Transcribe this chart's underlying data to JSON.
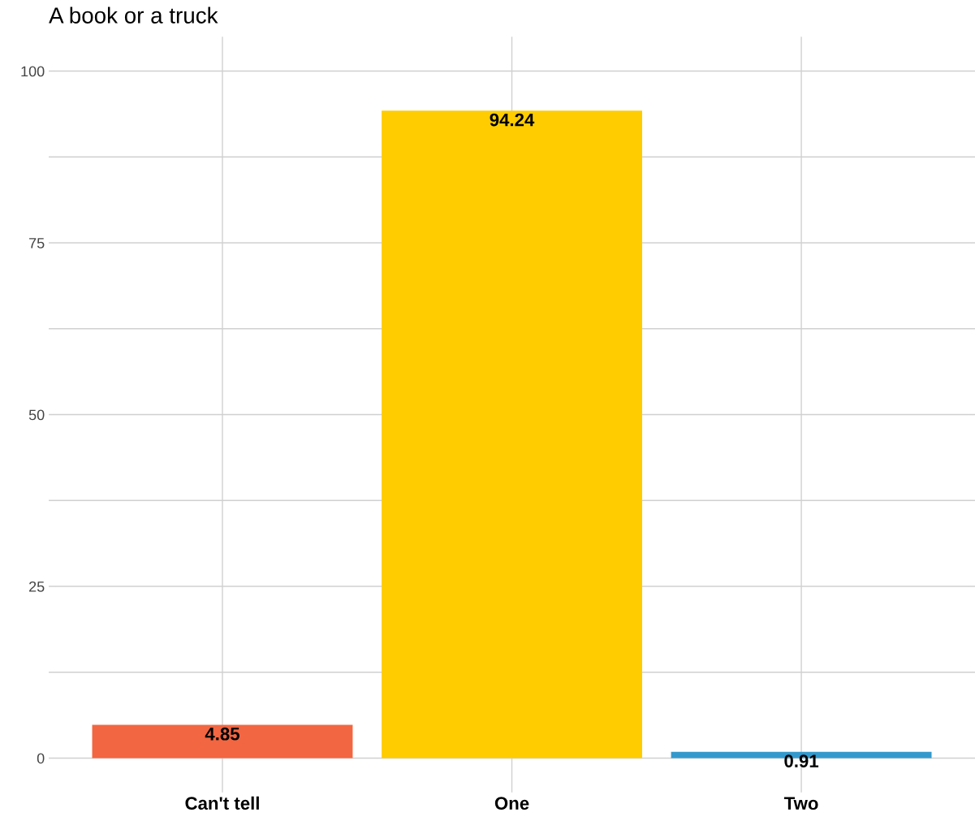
{
  "chart_data": {
    "type": "bar",
    "title": "A book or a truck",
    "categories": [
      "Can't tell",
      "One",
      "Two"
    ],
    "values": [
      4.85,
      94.24,
      0.91
    ],
    "colors": [
      "#f26641",
      "#ffcc00",
      "#3399cc"
    ],
    "ylim": [
      -5,
      105
    ],
    "yticks": [
      0,
      {
        "value": 12.5,
        "label": null
      },
      25,
      {
        "value": 37.5,
        "label": null
      },
      50,
      {
        "value": 62.5,
        "label": null
      },
      75,
      {
        "value": 87.5,
        "label": null
      },
      100
    ],
    "grid": true,
    "data_labels": true
  }
}
